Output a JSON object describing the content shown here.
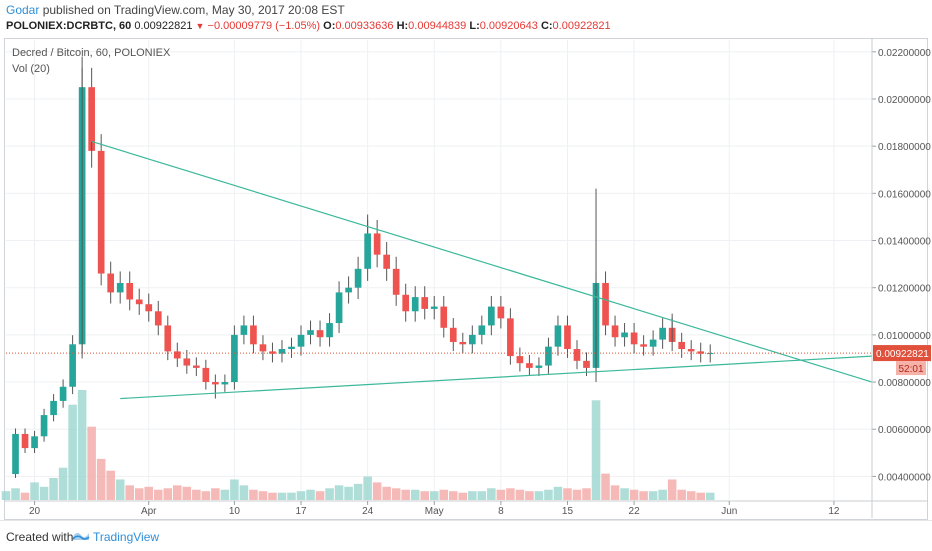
{
  "header": {
    "author": "Godar",
    "published_text": "published on TradingView.com, May 30, 2017 20:08 EST",
    "symbol": "POLONIEX:DCRBTC, 60",
    "last": "0.00922821",
    "change": "−0.00009779 (−1.05%)",
    "o_label": "O:",
    "o_value": "0.00933636",
    "h_label": "H:",
    "h_value": "0.00944839",
    "l_label": "L:",
    "l_value": "0.00920643",
    "c_label": "C:",
    "c_value": "0.00922821"
  },
  "legend": {
    "title": "Decred / Bitcoin, 60, POLONIEX",
    "volume": "Vol (20)"
  },
  "price_tag": {
    "value": "0.00922821",
    "countdown": "52:01"
  },
  "footer": {
    "created_with": "Created with",
    "brand": "TradingView"
  },
  "colors": {
    "up": "#26a69a",
    "down": "#ef5350",
    "wick": "#555555",
    "trendline": "#3cb89a",
    "price_line": "#e05030",
    "tag_bg": "#e0503a"
  },
  "chart_data": {
    "type": "line",
    "title": "Decred / Bitcoin, 60, POLONIEX",
    "xlabel": "",
    "ylabel": "",
    "x_domain": [
      "2017-03-17",
      "2017-06-16"
    ],
    "ylim": [
      0.003,
      0.0225
    ],
    "y_ticks": [
      "0.00400000",
      "0.00600000",
      "0.00800000",
      "0.01000000",
      "0.01200000",
      "0.01400000",
      "0.01600000",
      "0.01800000",
      "0.02000000",
      "0.02200000"
    ],
    "y_tick_values": [
      0.004,
      0.006,
      0.008,
      0.01,
      0.012,
      0.014,
      0.016,
      0.018,
      0.02,
      0.022
    ],
    "x_ticks": [
      {
        "label": "20",
        "date": "2017-03-20"
      },
      {
        "label": "Apr",
        "date": "2017-04-01"
      },
      {
        "label": "10",
        "date": "2017-04-10"
      },
      {
        "label": "17",
        "date": "2017-04-17"
      },
      {
        "label": "24",
        "date": "2017-04-24"
      },
      {
        "label": "May",
        "date": "2017-05-01"
      },
      {
        "label": "8",
        "date": "2017-05-08"
      },
      {
        "label": "15",
        "date": "2017-05-15"
      },
      {
        "label": "22",
        "date": "2017-05-22"
      },
      {
        "label": "Jun",
        "date": "2017-06-01"
      },
      {
        "label": "12",
        "date": "2017-06-12"
      }
    ],
    "price_path": [
      [
        "2017-03-17",
        0.0041
      ],
      [
        "2017-03-18",
        0.0058
      ],
      [
        "2017-03-19",
        0.0052
      ],
      [
        "2017-03-20",
        0.0057
      ],
      [
        "2017-03-21",
        0.0066
      ],
      [
        "2017-03-22",
        0.0072
      ],
      [
        "2017-03-23",
        0.0078
      ],
      [
        "2017-03-24",
        0.0096
      ],
      [
        "2017-03-25",
        0.0205
      ],
      [
        "2017-03-26",
        0.0178
      ],
      [
        "2017-03-27",
        0.0126
      ],
      [
        "2017-03-28",
        0.0118
      ],
      [
        "2017-03-29",
        0.0122
      ],
      [
        "2017-03-30",
        0.0115
      ],
      [
        "2017-03-31",
        0.0113
      ],
      [
        "2017-04-01",
        0.011
      ],
      [
        "2017-04-02",
        0.0104
      ],
      [
        "2017-04-03",
        0.0093
      ],
      [
        "2017-04-04",
        0.009
      ],
      [
        "2017-04-05",
        0.0087
      ],
      [
        "2017-04-06",
        0.0086
      ],
      [
        "2017-04-07",
        0.008
      ],
      [
        "2017-04-08",
        0.0079
      ],
      [
        "2017-04-09",
        0.008
      ],
      [
        "2017-04-10",
        0.01
      ],
      [
        "2017-04-11",
        0.0104
      ],
      [
        "2017-04-12",
        0.0096
      ],
      [
        "2017-04-13",
        0.0093
      ],
      [
        "2017-04-14",
        0.0092
      ],
      [
        "2017-04-15",
        0.0094
      ],
      [
        "2017-04-16",
        0.0095
      ],
      [
        "2017-04-17",
        0.01
      ],
      [
        "2017-04-18",
        0.0102
      ],
      [
        "2017-04-19",
        0.0099
      ],
      [
        "2017-04-20",
        0.0105
      ],
      [
        "2017-04-21",
        0.0118
      ],
      [
        "2017-04-22",
        0.012
      ],
      [
        "2017-04-23",
        0.0128
      ],
      [
        "2017-04-24",
        0.0143
      ],
      [
        "2017-04-25",
        0.0134
      ],
      [
        "2017-04-26",
        0.0128
      ],
      [
        "2017-04-27",
        0.0117
      ],
      [
        "2017-04-28",
        0.011
      ],
      [
        "2017-04-29",
        0.0116
      ],
      [
        "2017-04-30",
        0.0111
      ],
      [
        "2017-05-01",
        0.0112
      ],
      [
        "2017-05-02",
        0.0103
      ],
      [
        "2017-05-03",
        0.0097
      ],
      [
        "2017-05-04",
        0.0096
      ],
      [
        "2017-05-05",
        0.01
      ],
      [
        "2017-05-06",
        0.0104
      ],
      [
        "2017-05-07",
        0.0112
      ],
      [
        "2017-05-08",
        0.0107
      ],
      [
        "2017-05-09",
        0.0091
      ],
      [
        "2017-05-10",
        0.0088
      ],
      [
        "2017-05-11",
        0.0086
      ],
      [
        "2017-05-12",
        0.0087
      ],
      [
        "2017-05-13",
        0.0095
      ],
      [
        "2017-05-14",
        0.0104
      ],
      [
        "2017-05-15",
        0.0094
      ],
      [
        "2017-05-16",
        0.0089
      ],
      [
        "2017-05-17",
        0.0086
      ],
      [
        "2017-05-18",
        0.0122
      ],
      [
        "2017-05-19",
        0.0104
      ],
      [
        "2017-05-20",
        0.0099
      ],
      [
        "2017-05-21",
        0.0101
      ],
      [
        "2017-05-22",
        0.0096
      ],
      [
        "2017-05-23",
        0.0095
      ],
      [
        "2017-05-24",
        0.0098
      ],
      [
        "2017-05-25",
        0.0103
      ],
      [
        "2017-05-26",
        0.0097
      ],
      [
        "2017-05-27",
        0.0094
      ],
      [
        "2017-05-28",
        0.0093
      ],
      [
        "2017-05-29",
        0.0092
      ],
      [
        "2017-05-30",
        0.00922821
      ]
    ],
    "wick_extremes": [
      [
        "2017-03-25",
        0.0218
      ],
      [
        "2017-03-25",
        0.009
      ],
      [
        "2017-03-26",
        0.0182
      ],
      [
        "2017-04-24",
        0.0151
      ],
      [
        "2017-05-18",
        0.0162
      ],
      [
        "2017-05-18",
        0.008
      ],
      [
        "2017-04-08",
        0.0073
      ],
      [
        "2017-05-26",
        0.0109
      ]
    ],
    "volume": [
      [
        "2017-03-17",
        0.6
      ],
      [
        "2017-03-18",
        0.8
      ],
      [
        "2017-03-19",
        0.5
      ],
      [
        "2017-03-20",
        1.2
      ],
      [
        "2017-03-21",
        0.9
      ],
      [
        "2017-03-22",
        1.5
      ],
      [
        "2017-03-23",
        2.2
      ],
      [
        "2017-03-24",
        6.5
      ],
      [
        "2017-03-25",
        7.5
      ],
      [
        "2017-03-26",
        5.0
      ],
      [
        "2017-03-27",
        2.8
      ],
      [
        "2017-03-28",
        2.0
      ],
      [
        "2017-03-29",
        1.4
      ],
      [
        "2017-03-30",
        1.0
      ],
      [
        "2017-03-31",
        0.8
      ],
      [
        "2017-04-01",
        0.9
      ],
      [
        "2017-04-02",
        0.7
      ],
      [
        "2017-04-03",
        0.8
      ],
      [
        "2017-04-04",
        1.0
      ],
      [
        "2017-04-05",
        0.9
      ],
      [
        "2017-04-06",
        0.7
      ],
      [
        "2017-04-07",
        0.6
      ],
      [
        "2017-04-08",
        0.8
      ],
      [
        "2017-04-09",
        0.7
      ],
      [
        "2017-04-10",
        1.4
      ],
      [
        "2017-04-11",
        1.0
      ],
      [
        "2017-04-12",
        0.7
      ],
      [
        "2017-04-13",
        0.6
      ],
      [
        "2017-04-14",
        0.5
      ],
      [
        "2017-04-15",
        0.5
      ],
      [
        "2017-04-16",
        0.5
      ],
      [
        "2017-04-17",
        0.6
      ],
      [
        "2017-04-18",
        0.7
      ],
      [
        "2017-04-19",
        0.6
      ],
      [
        "2017-04-20",
        0.8
      ],
      [
        "2017-04-21",
        1.0
      ],
      [
        "2017-04-22",
        0.9
      ],
      [
        "2017-04-23",
        1.1
      ],
      [
        "2017-04-24",
        1.6
      ],
      [
        "2017-04-25",
        1.2
      ],
      [
        "2017-04-26",
        0.9
      ],
      [
        "2017-04-27",
        0.8
      ],
      [
        "2017-04-28",
        0.7
      ],
      [
        "2017-04-29",
        0.7
      ],
      [
        "2017-04-30",
        0.6
      ],
      [
        "2017-05-01",
        0.6
      ],
      [
        "2017-05-02",
        0.7
      ],
      [
        "2017-05-03",
        0.6
      ],
      [
        "2017-05-04",
        0.5
      ],
      [
        "2017-05-05",
        0.6
      ],
      [
        "2017-05-06",
        0.6
      ],
      [
        "2017-05-07",
        0.8
      ],
      [
        "2017-05-08",
        0.7
      ],
      [
        "2017-05-09",
        0.8
      ],
      [
        "2017-05-10",
        0.7
      ],
      [
        "2017-05-11",
        0.6
      ],
      [
        "2017-05-12",
        0.6
      ],
      [
        "2017-05-13",
        0.7
      ],
      [
        "2017-05-14",
        0.9
      ],
      [
        "2017-05-15",
        0.8
      ],
      [
        "2017-05-16",
        0.7
      ],
      [
        "2017-05-17",
        0.8
      ],
      [
        "2017-05-18",
        6.8
      ],
      [
        "2017-05-19",
        1.8
      ],
      [
        "2017-05-20",
        1.0
      ],
      [
        "2017-05-21",
        0.8
      ],
      [
        "2017-05-22",
        0.7
      ],
      [
        "2017-05-23",
        0.6
      ],
      [
        "2017-05-24",
        0.6
      ],
      [
        "2017-05-25",
        0.7
      ],
      [
        "2017-05-26",
        1.4
      ],
      [
        "2017-05-27",
        0.7
      ],
      [
        "2017-05-28",
        0.6
      ],
      [
        "2017-05-29",
        0.5
      ],
      [
        "2017-05-30",
        0.5
      ]
    ],
    "trendlines": [
      {
        "name": "upper",
        "points": [
          [
            "2017-03-26",
            0.0182
          ],
          [
            "2017-06-16",
            0.008
          ]
        ]
      },
      {
        "name": "lower",
        "points": [
          [
            "2017-03-29",
            0.0073
          ],
          [
            "2017-06-16",
            0.0091
          ]
        ]
      }
    ],
    "last_price": 0.00922821
  }
}
